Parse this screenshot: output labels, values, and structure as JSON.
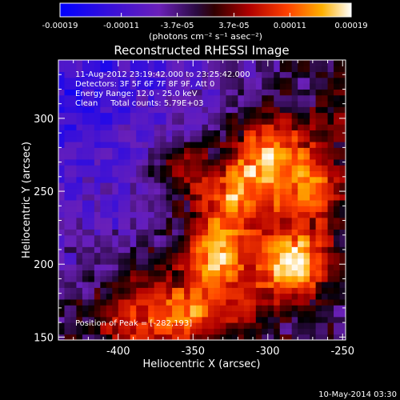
{
  "colorbar": {
    "ticks": [
      {
        "label": "-0.00019",
        "value": -0.00019
      },
      {
        "label": "-0.00011",
        "value": -0.00011
      },
      {
        "label": "-3.7e-05",
        "value": -3.7e-05
      },
      {
        "label": "3.7e-05",
        "value": 3.7e-05
      },
      {
        "label": "0.00011",
        "value": 0.00011
      },
      {
        "label": "0.00019",
        "value": 0.00019
      }
    ],
    "range": [
      -0.00019,
      0.00019
    ],
    "units_label": "(photons cm⁻² s⁻¹ asec⁻²)"
  },
  "chart_data": {
    "type": "heatmap",
    "title": "Reconstructed RHESSI Image",
    "xlabel": "Heliocentric X (arcsec)",
    "ylabel": "Heliocentric Y (arcsec)",
    "xlim": [
      -440,
      -248
    ],
    "ylim": [
      148,
      340
    ],
    "x_ticks": [
      {
        "label": "-400",
        "value": -400
      },
      {
        "label": "-350",
        "value": -350
      },
      {
        "label": "-300",
        "value": -300
      },
      {
        "label": "-250",
        "value": -250
      }
    ],
    "y_ticks": [
      {
        "label": "150",
        "value": 150
      },
      {
        "label": "200",
        "value": 200
      },
      {
        "label": "250",
        "value": 250
      },
      {
        "label": "300",
        "value": 300
      }
    ],
    "peak": {
      "x": -282,
      "y": 193
    }
  },
  "annotations": {
    "line1": "11-Aug-2012 23:19:42.000 to 23:25:42.000",
    "line2": "Detectors: 3F 5F 6F 7F 8F 9F, Att 0",
    "line3": "Energy Range: 12.0 - 25.0 keV",
    "line4": "Clean     Total counts: 5.79E+03",
    "peak_text": "Position of Peak = [-282,193]"
  },
  "footer": {
    "timestamp": "10-May-2014 03:30"
  },
  "colors": {
    "background": "#000000",
    "text": "#ffffff",
    "axis": "#ffffff"
  }
}
